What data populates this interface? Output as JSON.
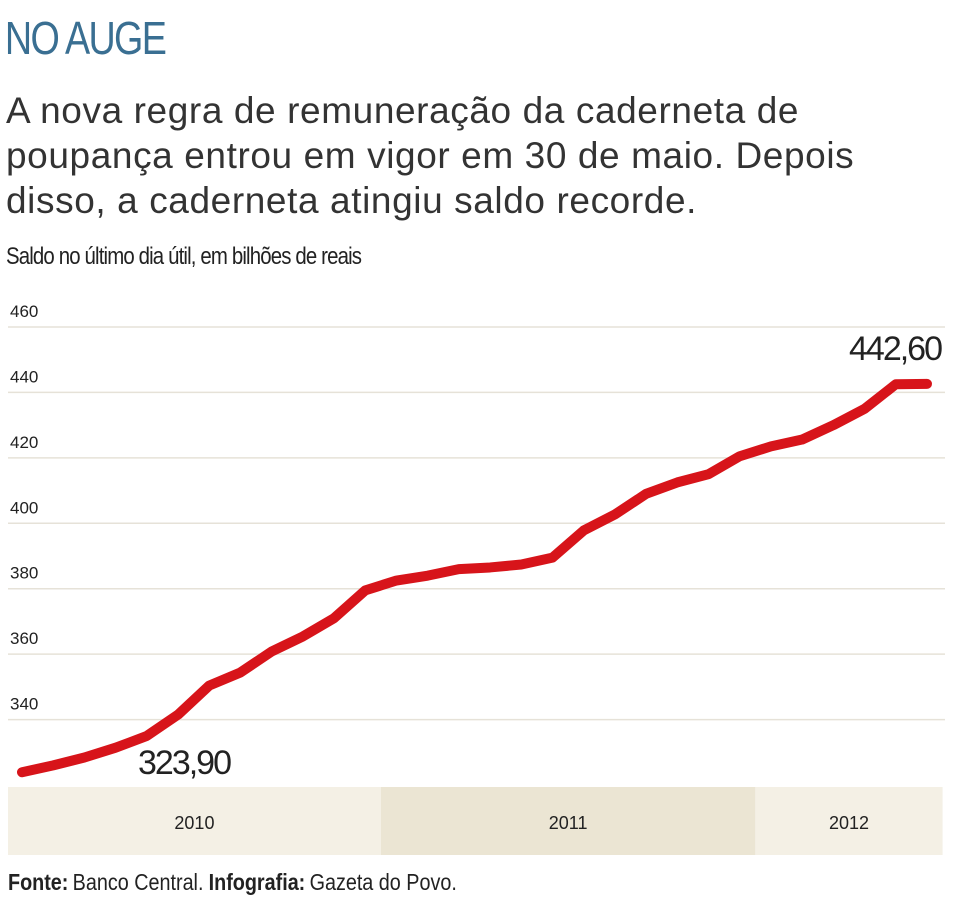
{
  "chart_data": {
    "type": "line",
    "title": "NO AUGE",
    "subtitle_lines": [
      "A nova regra de remuneração da caderneta de",
      "poupança entrou em vigor em 30 de maio. Depois",
      "disso, a caderneta atingiu saldo recorde."
    ],
    "y_label": "Saldo no último dia útil, em bilhões de reais",
    "categories": [
      "2010",
      null,
      null,
      null,
      null,
      null,
      null,
      null,
      null,
      null,
      null,
      null,
      "2011",
      null,
      null,
      null,
      null,
      null,
      null,
      null,
      null,
      null,
      null,
      null,
      "2012",
      null,
      null,
      null,
      null,
      null
    ],
    "values": [
      323.9,
      326,
      328.4,
      331.4,
      335,
      341.5,
      350.4,
      354.4,
      360.8,
      365.4,
      371,
      379.5,
      382.5,
      384,
      386,
      386.5,
      387.4,
      389.5,
      397.8,
      402.7,
      409,
      412.5,
      415,
      420.5,
      423.5,
      425.6,
      430,
      435,
      442.5,
      442.6
    ],
    "value_labels": [
      "323,90",
      null,
      null,
      null,
      null,
      null,
      null,
      null,
      null,
      null,
      null,
      null,
      null,
      null,
      null,
      null,
      null,
      null,
      null,
      null,
      null,
      null,
      null,
      null,
      null,
      null,
      null,
      null,
      null,
      "442,60"
    ],
    "color": "#d7141a",
    "band_colors": [
      "#f4f0e5",
      "#ebe5d3",
      "#f4f0e5"
    ],
    "ylim": [
      320,
      460
    ],
    "yticks": [
      340,
      360,
      380,
      400,
      420,
      440,
      460
    ],
    "grid": true,
    "source": [
      {
        "label": "Fonte:",
        "text": "Banco Central."
      },
      {
        "label": "Infografia:",
        "text": "Gazeta do Povo."
      }
    ]
  }
}
